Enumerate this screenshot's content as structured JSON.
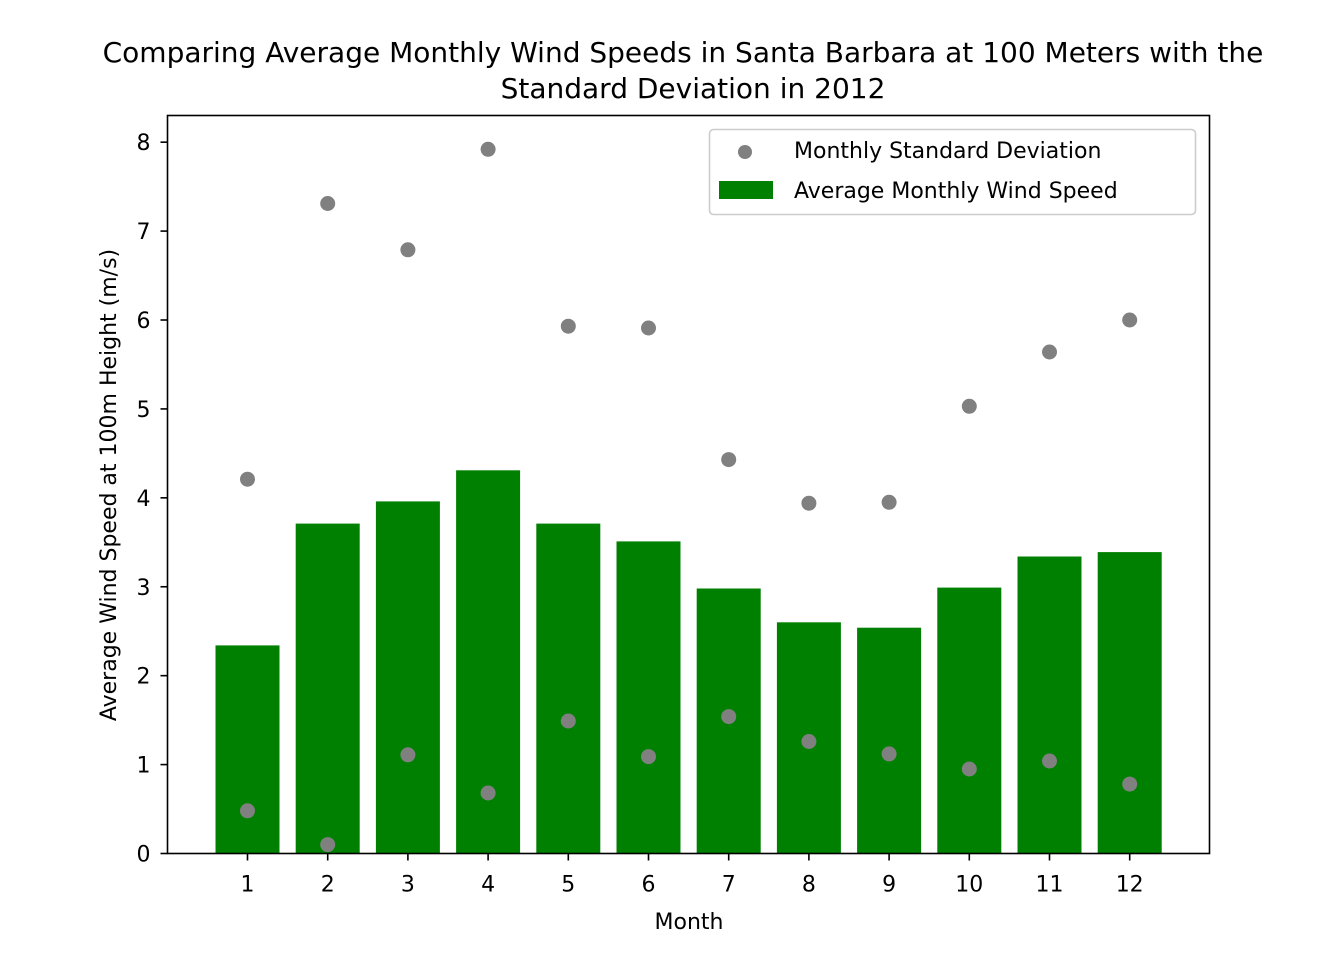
{
  "chart_data": {
    "type": "bar",
    "title_line1": "Comparing Average Monthly Wind Speeds in Santa Barbara at 100 Meters with the",
    "title_line2": "Standard Deviation in 2012",
    "xlabel": "Month",
    "ylabel": "Average Wind Speed at 100m Height (m/s)",
    "categories": [
      "1",
      "2",
      "3",
      "4",
      "5",
      "6",
      "7",
      "8",
      "9",
      "10",
      "11",
      "12"
    ],
    "yticks": [
      "0",
      "1",
      "2",
      "3",
      "4",
      "5",
      "6",
      "7",
      "8"
    ],
    "ylim": [
      0,
      8.3
    ],
    "series": [
      {
        "name": "Average Monthly Wind Speed",
        "kind": "bar",
        "color": "#008000",
        "values": [
          2.34,
          3.71,
          3.96,
          4.31,
          3.71,
          3.51,
          2.98,
          2.6,
          2.54,
          2.99,
          3.34,
          3.39
        ]
      },
      {
        "name": "Monthly Standard Deviation",
        "kind": "scatter",
        "color": "#808080",
        "points": [
          [
            1,
            4.21
          ],
          [
            1,
            0.48
          ],
          [
            2,
            7.31
          ],
          [
            2,
            0.1
          ],
          [
            3,
            6.79
          ],
          [
            3,
            1.11
          ],
          [
            4,
            7.92
          ],
          [
            4,
            0.68
          ],
          [
            5,
            5.93
          ],
          [
            5,
            1.49
          ],
          [
            6,
            5.91
          ],
          [
            6,
            1.09
          ],
          [
            7,
            4.43
          ],
          [
            7,
            1.54
          ],
          [
            8,
            3.94
          ],
          [
            8,
            1.26
          ],
          [
            9,
            3.95
          ],
          [
            9,
            1.12
          ],
          [
            10,
            5.03
          ],
          [
            10,
            0.95
          ],
          [
            11,
            5.64
          ],
          [
            11,
            1.04
          ],
          [
            12,
            6.0
          ],
          [
            12,
            0.78
          ]
        ]
      }
    ],
    "legend": {
      "position": "upper right",
      "entries": [
        "Monthly Standard Deviation",
        "Average Monthly Wind Speed"
      ]
    },
    "grid": false
  }
}
